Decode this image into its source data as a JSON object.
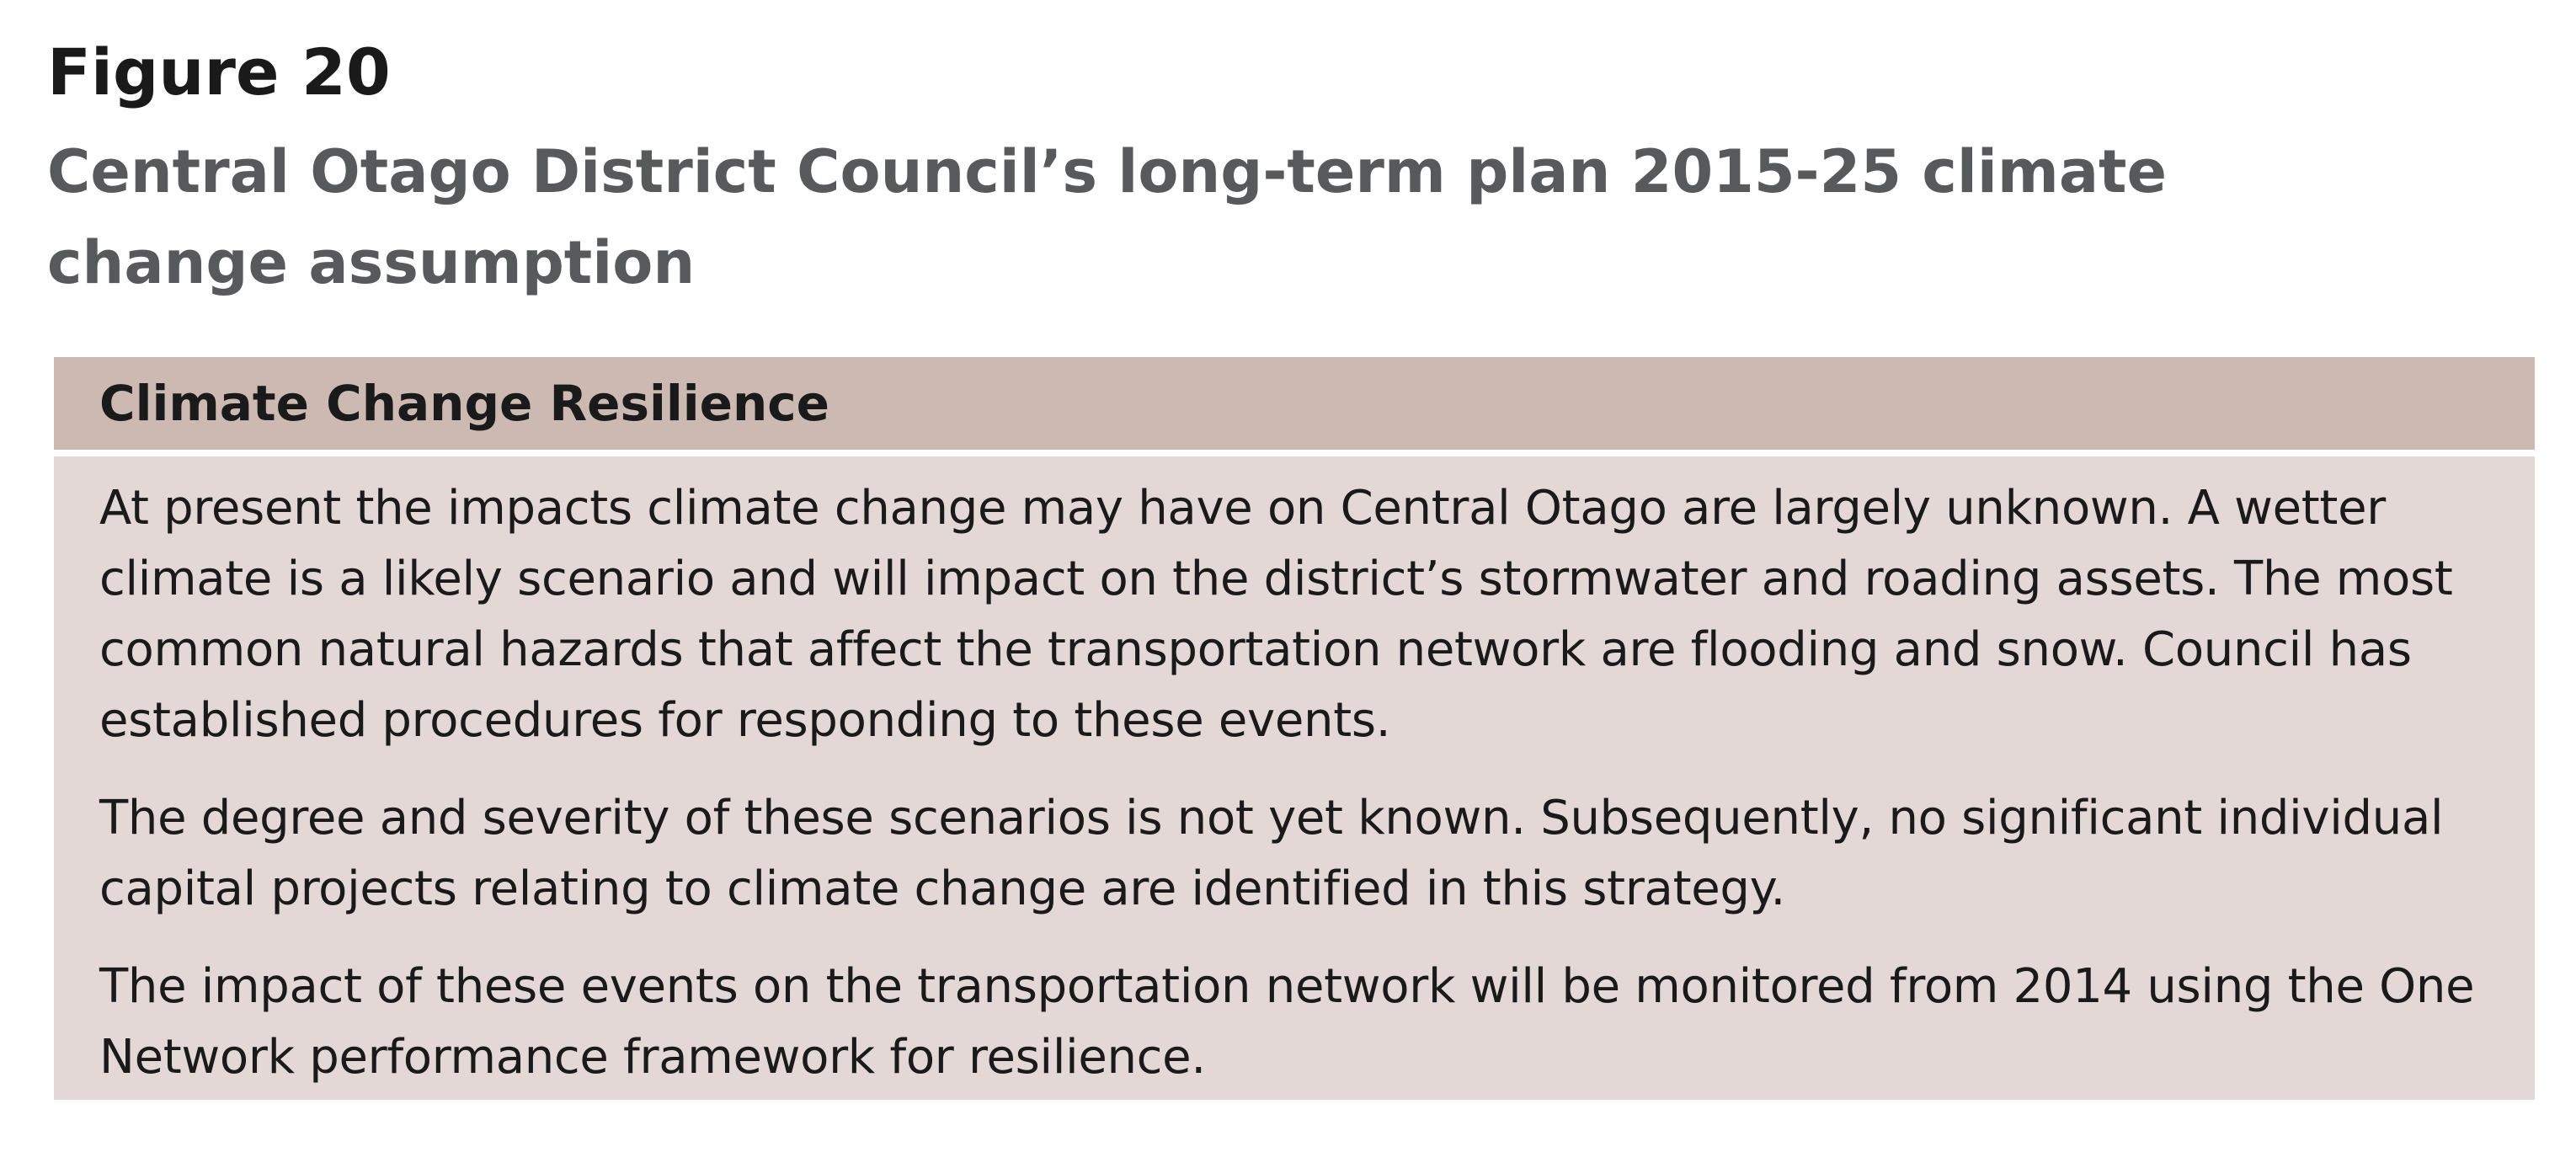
{
  "figure": {
    "label": "Figure 20",
    "title": "Central Otago District Council’s long-term plan 2015-25 climate change assumption"
  },
  "box": {
    "heading": "Climate Change Resilience",
    "paragraphs": [
      "At present the impacts climate change may have on Central Otago are largely unknown. A wetter climate is a likely scenario and will impact on the district’s stormwater and roading assets. The most common natural hazards that affect the transportation network are flooding and snow. Council has established procedures for responding to these events.",
      "The degree and severity of these scenarios is not yet known. Subsequently, no significant individual capital projects relating to climate change are identified in this strategy.",
      "The impact of these events on the transportation network will be monitored from 2014 using the One Network performance framework for resilience."
    ]
  },
  "colors": {
    "header_background": "#cbb9b2",
    "body_background": "#e3d8d5",
    "title_color": "#58595b"
  }
}
